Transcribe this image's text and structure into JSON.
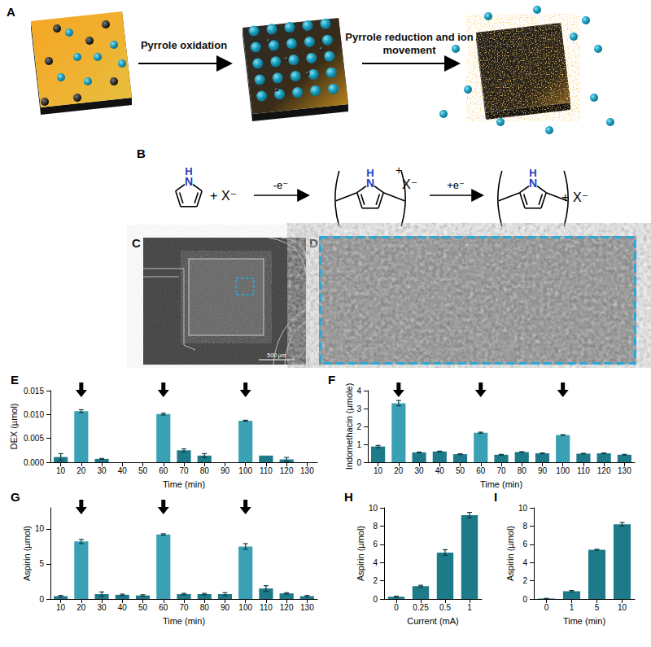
{
  "diagram": {
    "panel_labels": [
      "A",
      "B",
      "C",
      "D"
    ],
    "steps": [
      "Pyrrole oxidation",
      "Pyrrole reduction and ion movement"
    ],
    "chemistry": {
      "ring_atom": "N",
      "ring_h": "H",
      "plus": "+",
      "anion": "X⁻",
      "oxidation": "-e⁻",
      "reduction": "+e⁻"
    },
    "scale_bar": "500 µm"
  },
  "chart_data": [
    {
      "type": "bar",
      "title": "E",
      "xlabel": "Time (min)",
      "ylabel": "DEX (µmol)",
      "categories": [
        "10",
        "20",
        "30",
        "40",
        "50",
        "60",
        "70",
        "80",
        "90",
        "100",
        "110",
        "120",
        "130"
      ],
      "values": [
        0.0011,
        0.0107,
        0.0007,
        0,
        0,
        0.0101,
        0.0025,
        0.0014,
        0,
        0.0087,
        0.0014,
        0.0006,
        0
      ],
      "errors": [
        0.0007,
        0.0003,
        0.0001,
        0,
        0,
        0.0002,
        0.0003,
        0.0004,
        0,
        0.0001,
        0,
        0.0004,
        0
      ],
      "colors": [
        "#1c7a89",
        "#3aa0b4",
        "#1c7a89",
        "#1c7a89",
        "#1c7a89",
        "#3aa0b4",
        "#1c7a89",
        "#1c7a89",
        "#1c7a89",
        "#3aa0b4",
        "#1c7a89",
        "#1c7a89",
        "#1c7a89"
      ],
      "arrows": [
        "20",
        "60",
        "100"
      ],
      "ylim": [
        0,
        0.015
      ],
      "yticks": [
        {
          "value": 0,
          "label": "0.000"
        },
        {
          "value": 0.005,
          "label": "0.005"
        },
        {
          "value": 0.01,
          "label": "0.010"
        },
        {
          "value": 0.015,
          "label": "0.015"
        }
      ],
      "grid": false
    },
    {
      "type": "bar",
      "title": "F",
      "xlabel": "Time (min)",
      "ylabel": "Indomethacin (µmole)",
      "categories": [
        "10",
        "20",
        "30",
        "40",
        "50",
        "60",
        "70",
        "80",
        "90",
        "100",
        "110",
        "120",
        "130"
      ],
      "values": [
        0.88,
        3.3,
        0.55,
        0.6,
        0.45,
        1.65,
        0.42,
        0.57,
        0.5,
        1.52,
        0.48,
        0.5,
        0.42
      ],
      "errors": [
        0.06,
        0.15,
        0.02,
        0.02,
        0.02,
        0.03,
        0.02,
        0.02,
        0.02,
        0.02,
        0.02,
        0.02,
        0.02
      ],
      "colors": [
        "#1c7a89",
        "#3aa0b4",
        "#1c7a89",
        "#1c7a89",
        "#1c7a89",
        "#3aa0b4",
        "#1c7a89",
        "#1c7a89",
        "#1c7a89",
        "#3aa0b4",
        "#1c7a89",
        "#1c7a89",
        "#1c7a89"
      ],
      "arrows": [
        "20",
        "60",
        "100"
      ],
      "ylim": [
        0,
        4
      ],
      "yticks": [
        0,
        1,
        2,
        3,
        4
      ],
      "grid": false
    },
    {
      "type": "bar",
      "title": "G",
      "xlabel": "Time (min)",
      "ylabel": "Aspirin (µmol)",
      "categories": [
        "10",
        "20",
        "30",
        "40",
        "50",
        "60",
        "70",
        "80",
        "90",
        "100",
        "110",
        "120",
        "130"
      ],
      "values": [
        0.4,
        8.2,
        0.7,
        0.6,
        0.5,
        9.2,
        0.7,
        0.7,
        0.7,
        7.5,
        1.5,
        0.8,
        0.4
      ],
      "errors": [
        0.1,
        0.3,
        0.3,
        0.1,
        0.1,
        0.1,
        0.1,
        0.1,
        0.2,
        0.4,
        0.4,
        0.1,
        0.1
      ],
      "colors": [
        "#1c7a89",
        "#3aa0b4",
        "#1c7a89",
        "#1c7a89",
        "#1c7a89",
        "#3aa0b4",
        "#1c7a89",
        "#1c7a89",
        "#1c7a89",
        "#3aa0b4",
        "#1c7a89",
        "#1c7a89",
        "#1c7a89"
      ],
      "arrows": [
        "20",
        "60",
        "100"
      ],
      "ylim": [
        0,
        13
      ],
      "yticks": [
        0,
        5,
        10
      ],
      "grid": false
    },
    {
      "type": "bar",
      "title": "H",
      "xlabel": "Current (mA)",
      "ylabel": "Aspirin (µmol)",
      "categories": [
        "0",
        "0.25",
        "0.5",
        "1"
      ],
      "values": [
        0.25,
        1.4,
        5.1,
        9.2
      ],
      "errors": [
        0.05,
        0.1,
        0.3,
        0.3
      ],
      "color": "#1c7a89",
      "ylim": [
        0,
        10
      ],
      "yticks": [
        0,
        2,
        4,
        6,
        8,
        10
      ],
      "grid": false
    },
    {
      "type": "bar",
      "title": "I",
      "xlabel": "Time (min)",
      "ylabel": "Aspirin (µmol)",
      "categories": [
        "0",
        "1",
        "5",
        "10"
      ],
      "values": [
        0.05,
        0.85,
        5.4,
        8.2
      ],
      "errors": [
        0.02,
        0.08,
        0.05,
        0.2
      ],
      "color": "#1c7a89",
      "ylim": [
        0,
        10
      ],
      "yticks": [
        0,
        2,
        4,
        6,
        8,
        10
      ],
      "grid": false
    }
  ]
}
